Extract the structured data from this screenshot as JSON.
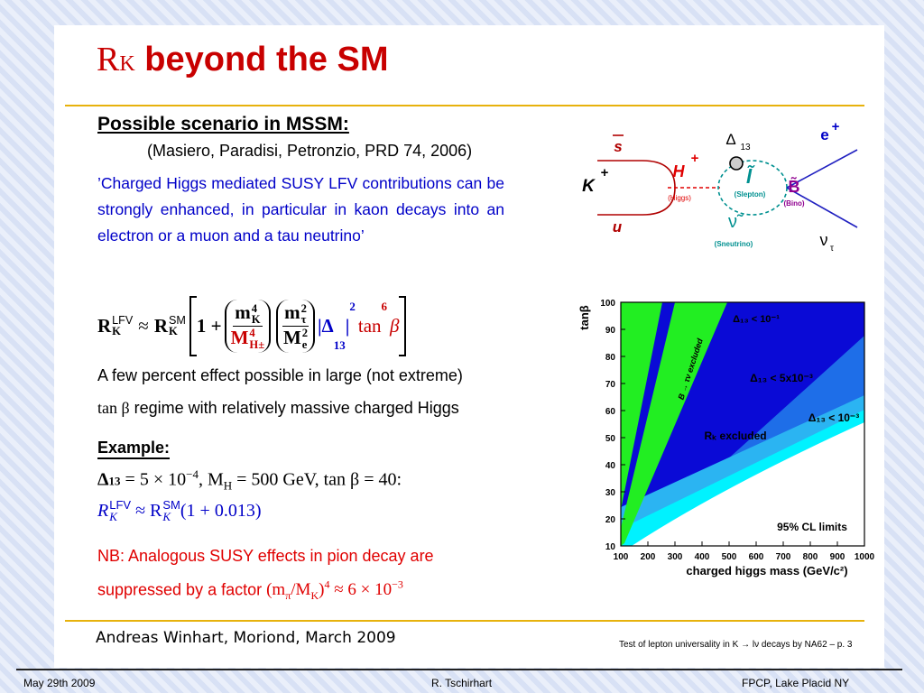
{
  "slide": {
    "title": [
      "R",
      "K",
      "beyond the SM"
    ],
    "heading": "Possible scenario in MSSM:",
    "citation": "(Masiero, Paradisi, Petronzio, PRD 74, 2006)",
    "quote": "’Charged Higgs mediated SUSY LFV contributions can be strongly enhanced, in particular in kaon decays into an electron or a muon and a tau neutrino’",
    "formula": [
      "R",
      "K",
      "LFV",
      "≈",
      "R",
      "K",
      "SM",
      "1 +",
      "m",
      "K",
      "4",
      "M",
      "H±",
      "4",
      "m",
      "τ",
      "2",
      "M",
      "e",
      "2",
      "|Δ",
      "13",
      "|",
      "2",
      "tan",
      "6",
      "β"
    ],
    "effect": [
      "A few percent effect possible in large (not extreme)",
      "tan β",
      " regime with relatively massive charged Higgs"
    ],
    "example": {
      "heading": "Example:",
      "line1": [
        "Δ",
        "13",
        " = 5 × 10",
        "−4",
        ", M",
        "H",
        " = 500 GeV, tan β = 40:"
      ],
      "line2": [
        "R",
        "K",
        "LFV",
        " ≈ R",
        "K",
        "SM",
        "(1 + 0.013)"
      ]
    },
    "nb": [
      "NB: Analogous SUSY effects in pion decay are",
      "suppressed by a factor ",
      "(m",
      "π",
      "/M",
      "K",
      ")",
      "4",
      " ≈ 6 × 10",
      "−3"
    ],
    "credit": "Andreas Winhart, Moriond, March 2009",
    "page_note": "Test of lepton universality in K → lν decays by NA62 – p. 3",
    "footer": [
      "May 29th  2009",
      "R. Tschirhart",
      "FPCP, Lake Placid NY"
    ]
  },
  "diagram": {
    "k": "K",
    "k_charge": "+",
    "s": "s",
    "u": "u",
    "h": "H",
    "h_charge": "+",
    "higgs": "(Higgs)",
    "delta": "Δ",
    "delta_sub": "13",
    "slepton_symbol": "l̃",
    "slepton": "(Slepton)",
    "sneutrino_symbol": "ν̃",
    "sneutrino": "(Sneutrino)",
    "bino_symbol": "B̃",
    "bino": "(Bino)",
    "e": "e",
    "e_charge": "+",
    "nu": "ν",
    "nu_sub": "τ"
  },
  "plot": {
    "ylabel": "tanβ",
    "xlabel": "charged higgs mass (GeV/c²)",
    "xlim": [
      100,
      1000
    ],
    "ylim": [
      10,
      100
    ],
    "xticks": [
      100,
      200,
      300,
      400,
      500,
      600,
      700,
      800,
      900,
      1000
    ],
    "yticks": [
      10,
      20,
      30,
      40,
      50,
      60,
      70,
      80,
      90,
      100
    ],
    "regions": [
      "B → τν excluded",
      "Δ₁₃ < 10⁻¹",
      "Δ₁₃ < 5x10⁻³",
      "Δ₁₃ < 10⁻³",
      "Rₖ excluded",
      "95% CL limits"
    ]
  }
}
